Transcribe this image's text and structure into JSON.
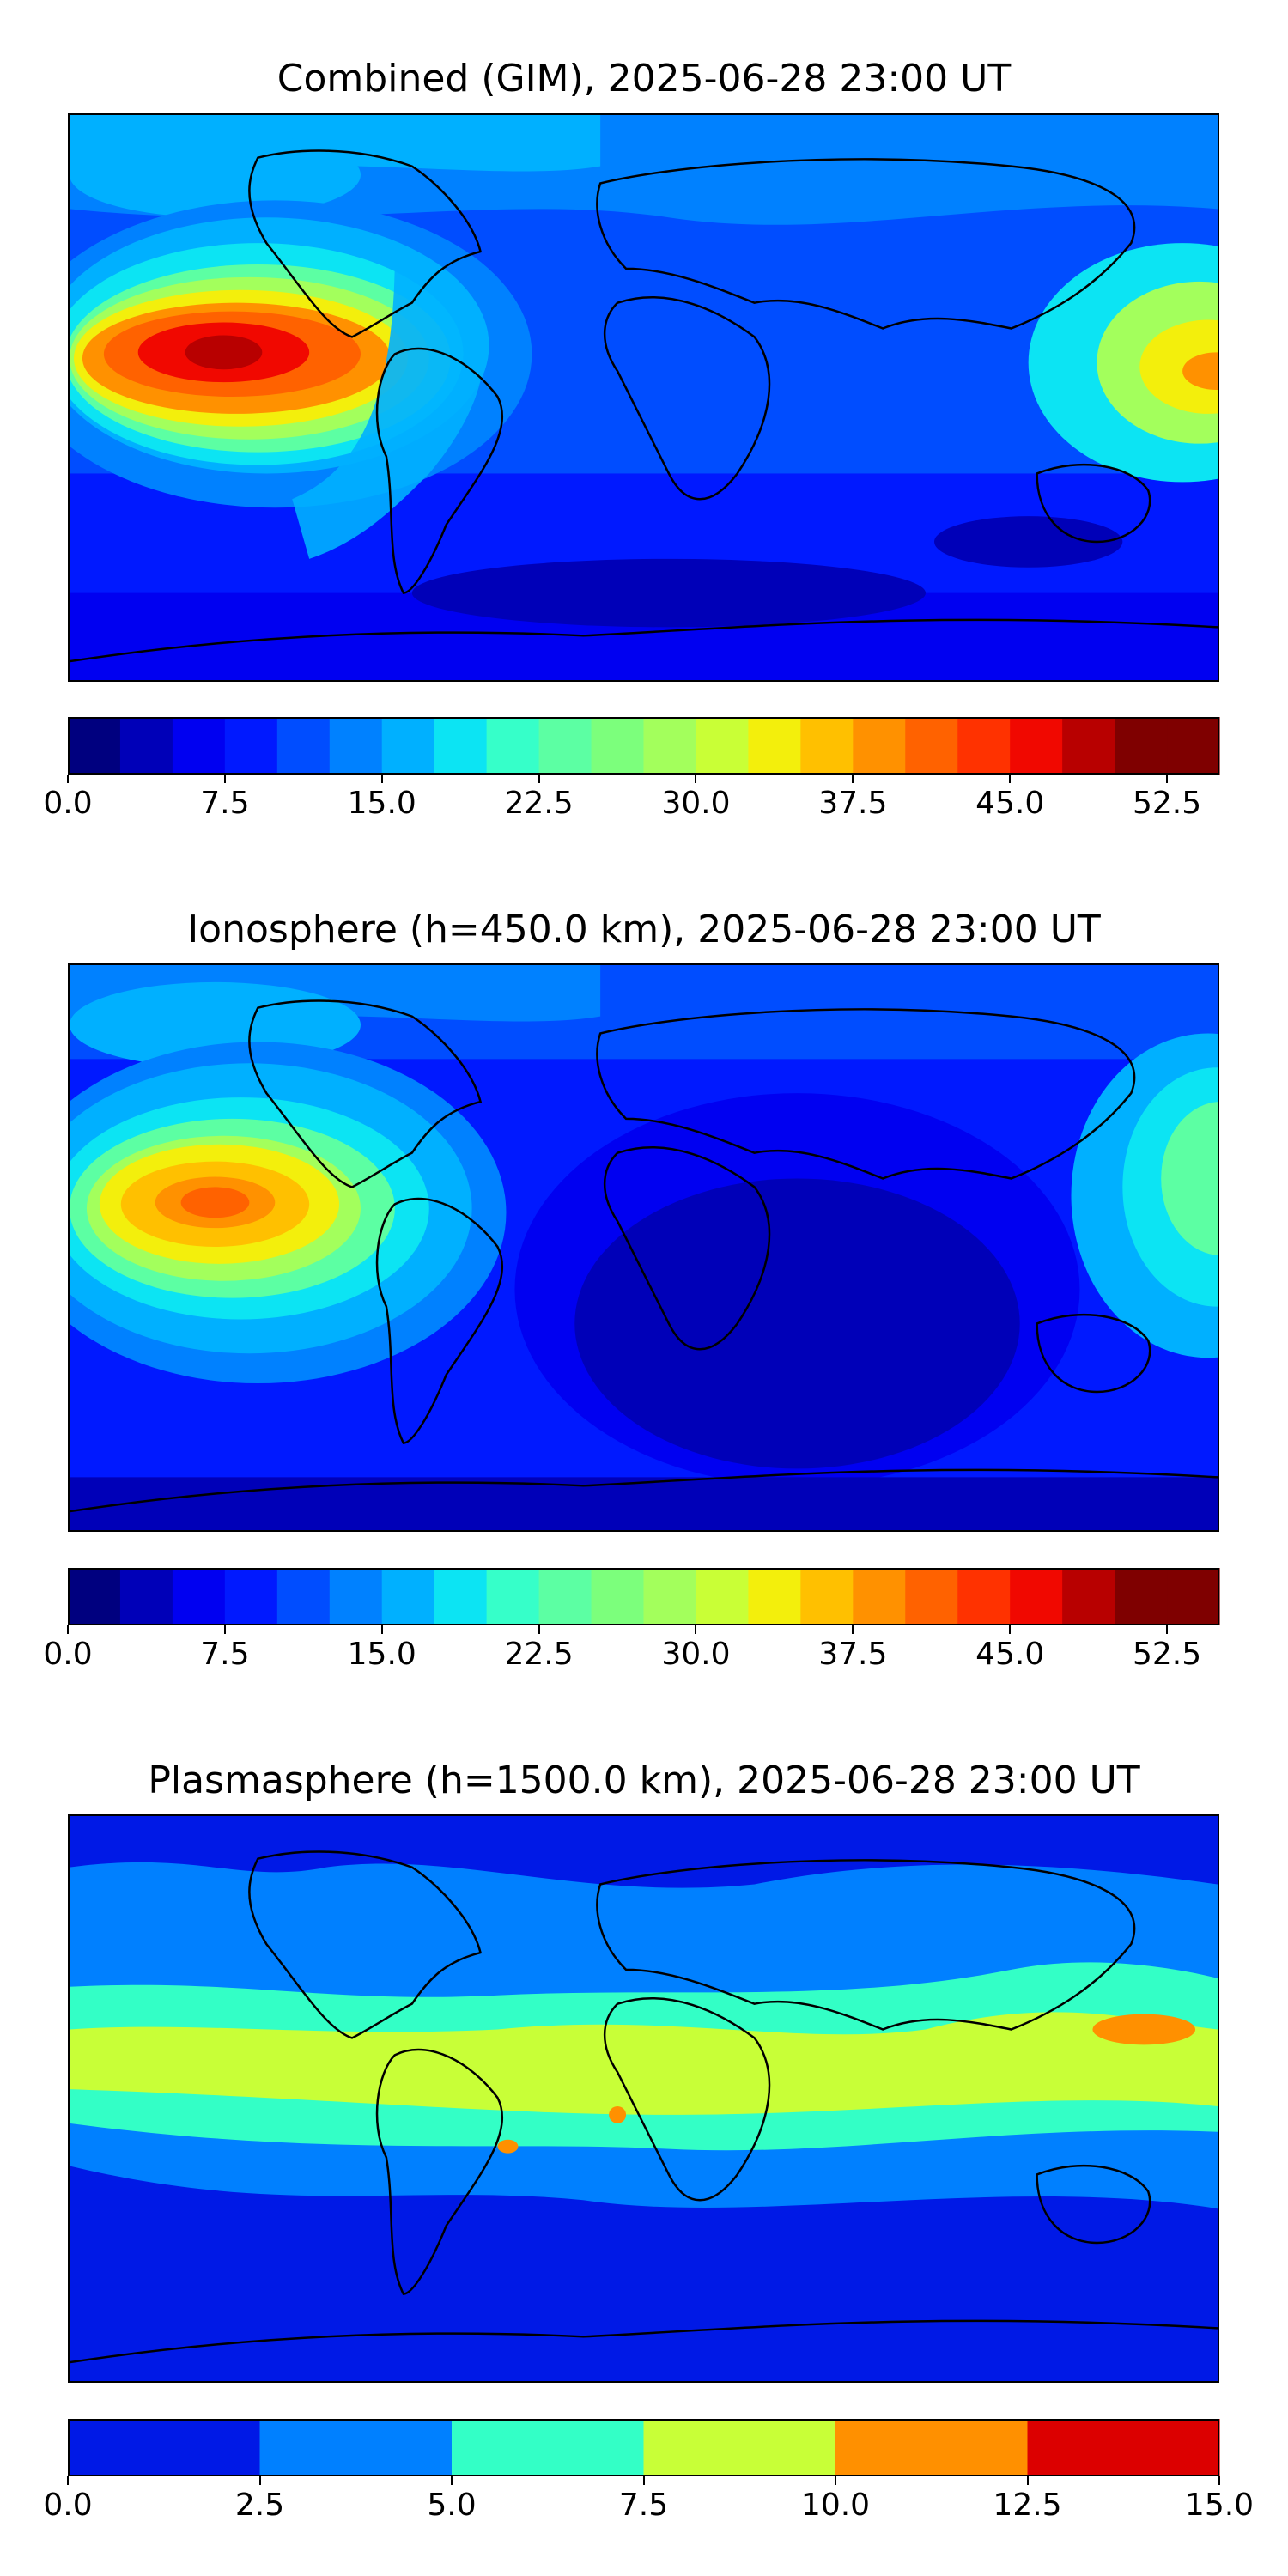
{
  "panels": [
    {
      "title": "Combined (GIM), 2025-06-28 23:00 UT",
      "colorbar": {
        "min": 0.0,
        "max": 55.0,
        "step": 2.5,
        "tick_labels": [
          "0.0",
          "7.5",
          "15.0",
          "22.5",
          "30.0",
          "37.5",
          "45.0",
          "52.5"
        ],
        "tick_values": [
          0.0,
          7.5,
          15.0,
          22.5,
          30.0,
          37.5,
          45.0,
          52.5
        ],
        "colors": [
          "#00007f",
          "#0000b8",
          "#0000f1",
          "#0019ff",
          "#004dff",
          "#0081ff",
          "#00b0ff",
          "#0ce4f3",
          "#36ffc9",
          "#5cffa3",
          "#7cff7c",
          "#a3ff5c",
          "#c9ff36",
          "#f3ef0c",
          "#ffc000",
          "#ff9100",
          "#ff6200",
          "#ff3200",
          "#f10800",
          "#b80000",
          "#7f0000",
          "#7f0000"
        ]
      }
    },
    {
      "title": "Ionosphere  (h=450.0 km), 2025-06-28 23:00 UT",
      "colorbar": {
        "min": 0.0,
        "max": 55.0,
        "step": 2.5,
        "tick_labels": [
          "0.0",
          "7.5",
          "15.0",
          "22.5",
          "30.0",
          "37.5",
          "45.0",
          "52.5"
        ],
        "tick_values": [
          0.0,
          7.5,
          15.0,
          22.5,
          30.0,
          37.5,
          45.0,
          52.5
        ],
        "colors": [
          "#00007f",
          "#0000b8",
          "#0000f1",
          "#0019ff",
          "#004dff",
          "#0081ff",
          "#00b0ff",
          "#0ce4f3",
          "#36ffc9",
          "#5cffa3",
          "#7cff7c",
          "#a3ff5c",
          "#c9ff36",
          "#f3ef0c",
          "#ffc000",
          "#ff9100",
          "#ff6200",
          "#ff3200",
          "#f10800",
          "#b80000",
          "#7f0000",
          "#7f0000"
        ]
      }
    },
    {
      "title": "Plasmasphere (h=1500.0 km), 2025-06-28 23:00 UT",
      "colorbar": {
        "min": 0.0,
        "max": 15.0,
        "step": 2.5,
        "tick_labels": [
          "0.0",
          "2.5",
          "5.0",
          "7.5",
          "10.0",
          "12.5",
          "15.0"
        ],
        "tick_values": [
          0.0,
          2.5,
          5.0,
          7.5,
          10.0,
          12.5,
          15.0
        ],
        "colors": [
          "#0019e6",
          "#0080ff",
          "#33ffc6",
          "#c8ff37",
          "#ff9000",
          "#dc0000"
        ]
      }
    }
  ]
}
